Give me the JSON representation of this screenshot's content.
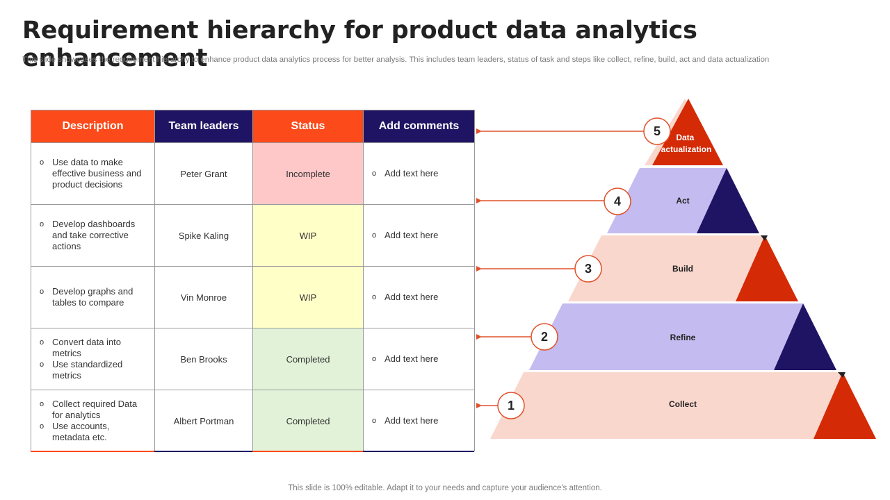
{
  "title": "Requirement hierarchy for product data analytics enhancement",
  "subtitle": "This slide showcases the requirement hierarchy to enhance product data analytics process for better analysis. This includes team leaders, status of task and steps like collect, refine, build, act and data actualization",
  "table": {
    "headers": [
      "Description",
      "Team leaders",
      "Status",
      "Add comments"
    ],
    "rows": [
      {
        "desc": [
          "Use data to make effective business and product decisions"
        ],
        "leader": "Peter Grant",
        "status": "Incomplete",
        "comment": "Add text here"
      },
      {
        "desc": [
          "Develop dashboards and take corrective actions"
        ],
        "leader": "Spike Kaling",
        "status": "WIP",
        "comment": "Add text here"
      },
      {
        "desc": [
          "Develop graphs and tables to compare"
        ],
        "leader": "Vin Monroe",
        "status": "WIP",
        "comment": "Add text here"
      },
      {
        "desc": [
          "Convert data into metrics",
          "Use standardized metrics"
        ],
        "leader": "Ben Brooks",
        "status": "Completed",
        "comment": "Add text here"
      },
      {
        "desc": [
          "Collect required Data for analytics",
          "Use accounts, metadata etc."
        ],
        "leader": "Albert Portman",
        "status": "Completed",
        "comment": "Add text here"
      }
    ]
  },
  "pyramid": {
    "levels": [
      {
        "number": "5",
        "label_lines": [
          "Data",
          "actualization"
        ]
      },
      {
        "number": "4",
        "label_lines": [
          "Act"
        ]
      },
      {
        "number": "3",
        "label_lines": [
          "Build"
        ]
      },
      {
        "number": "2",
        "label_lines": [
          "Refine"
        ]
      },
      {
        "number": "1",
        "label_lines": [
          "Collect"
        ]
      }
    ]
  },
  "colors": {
    "orange": "#fc4a1a",
    "navy": "#1f1463",
    "peach": "#fad7cd",
    "lavender": "#c4bcf0",
    "red": "#d42a05"
  },
  "footer": "This slide is 100% editable. Adapt it to your needs and capture your audience's attention."
}
